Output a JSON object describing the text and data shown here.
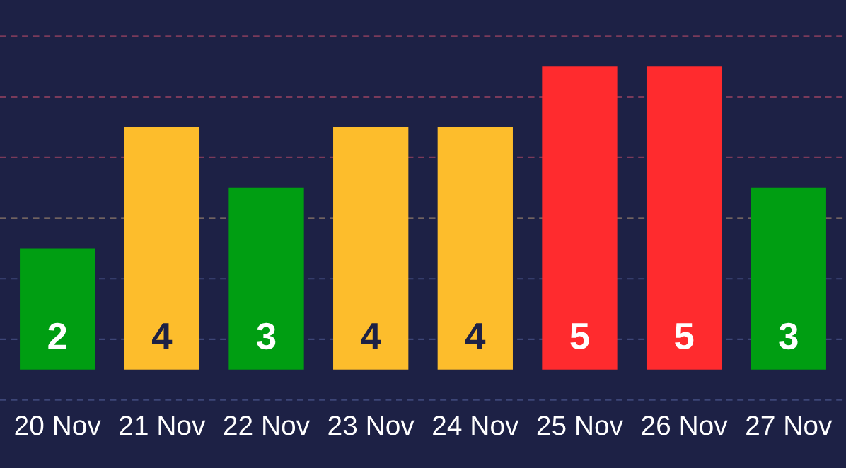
{
  "chart_data": {
    "type": "bar",
    "categories": [
      "20 Nov",
      "21 Nov",
      "22 Nov",
      "23 Nov",
      "24 Nov",
      "25 Nov",
      "26 Nov",
      "27 Nov"
    ],
    "values": [
      2,
      4,
      3,
      4,
      4,
      5,
      5,
      3
    ],
    "colors": [
      "#009e12",
      "#fdbd2c",
      "#009e12",
      "#fdbd2c",
      "#fdbd2c",
      "#ff2b2e",
      "#ff2b2e",
      "#009e12"
    ],
    "data_labels": true,
    "ref_lines": [
      {
        "axis": "y",
        "value": -0.5,
        "color": "#3d4677",
        "line_style": "dashed"
      },
      {
        "axis": "y",
        "value": 0.5,
        "color": "#3d4677",
        "line_style": "dashed"
      },
      {
        "axis": "y",
        "value": 1.5,
        "color": "#3d4677",
        "line_style": "dashed"
      },
      {
        "axis": "y",
        "value": 2.5,
        "color": "#8e7a6a",
        "line_style": "dashed"
      },
      {
        "axis": "y",
        "value": 3.5,
        "color": "#7a3a5a",
        "line_style": "dashed"
      },
      {
        "axis": "y",
        "value": 4.5,
        "color": "#7a3a5a",
        "line_style": "dashed"
      },
      {
        "axis": "y",
        "value": 5.5,
        "color": "#7a3a5a",
        "line_style": "dashed"
      }
    ],
    "grid": false,
    "legend": false
  }
}
